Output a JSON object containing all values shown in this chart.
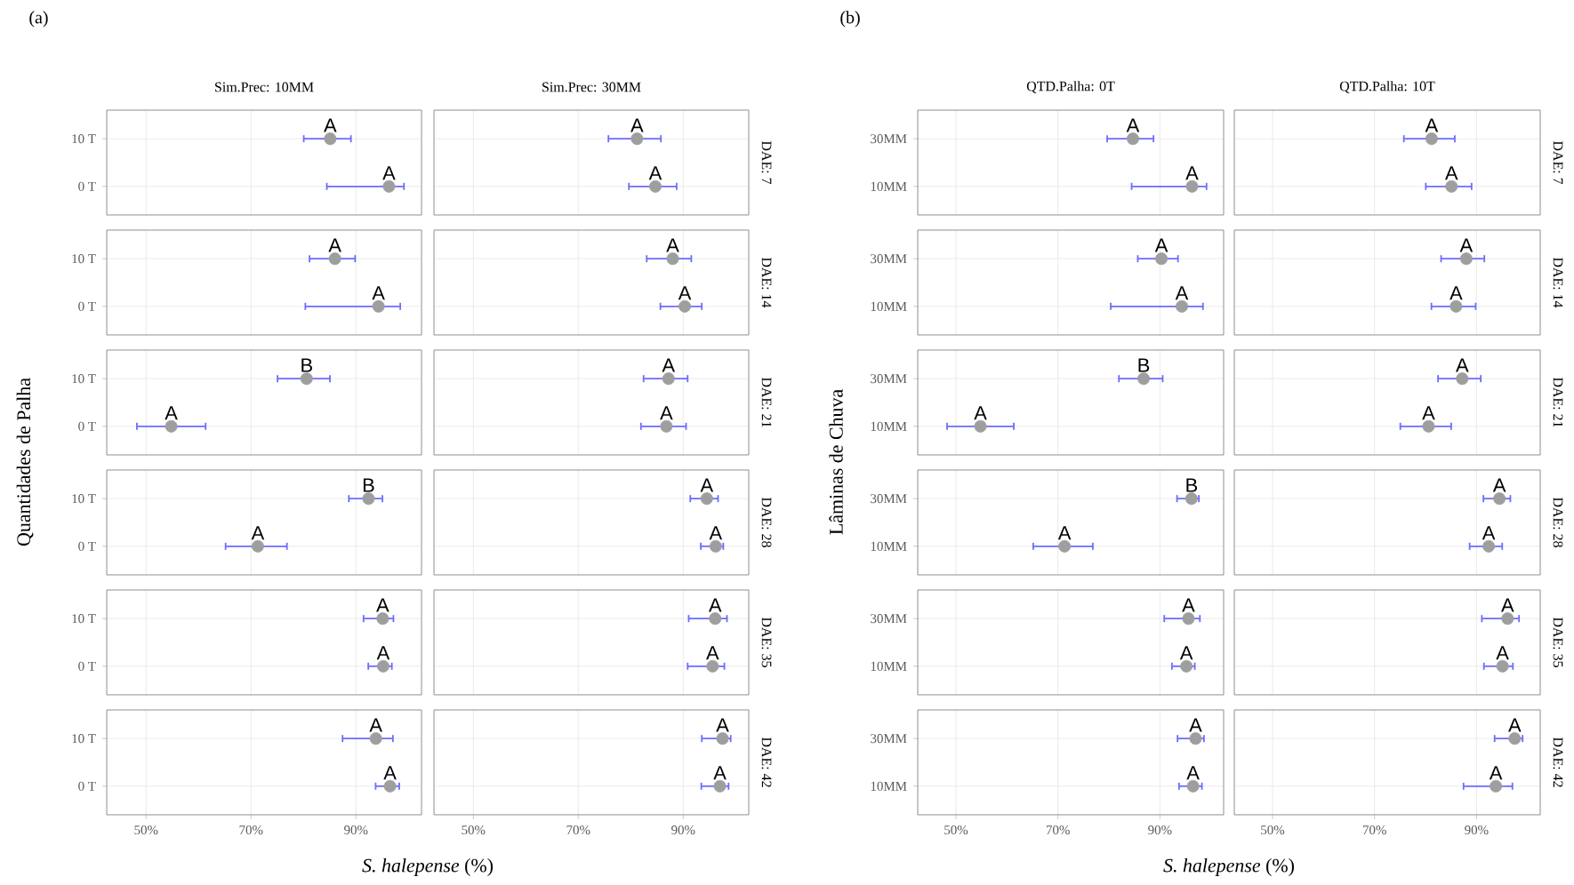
{
  "chart_data": [
    {
      "type": "scatter",
      "orientation": "horizontal",
      "title": "Sim.Prec: 10MM",
      "annotations": [
        "(a)",
        {
          "text": "A",
          "x": 85.1,
          "y": "10 T"
        },
        {
          "text": "A",
          "x": 96.3,
          "y": "0 T"
        }
      ],
      "categories": [
        "10 T",
        "0 T"
      ],
      "values": [
        85.1,
        96.3
      ],
      "errors": [
        [
          79.9,
          89.2
        ],
        [
          84.3,
          99.3
        ]
      ],
      "color": "#9e9e9e",
      "marker": "circle",
      "grid": true,
      "tick_labels": "y",
      "xlim": [
        42.5,
        102.5
      ],
      "xticks": [
        50,
        70,
        90
      ]
    },
    {
      "type": "scatter",
      "orientation": "horizontal",
      "title": "Sim.Prec: 30MM",
      "y2label": "DAE: 7",
      "annotations": [
        {
          "text": "A",
          "x": 81.2,
          "y": "10 T"
        },
        {
          "text": "A",
          "x": 84.7,
          "y": "0 T"
        }
      ],
      "categories": [
        "10 T",
        "0 T"
      ],
      "values": [
        81.2,
        84.7
      ],
      "errors": [
        [
          75.6,
          85.9
        ],
        [
          79.5,
          88.9
        ]
      ],
      "color": "#9e9e9e",
      "marker": "circle",
      "grid": true,
      "tick_labels": false,
      "xlim": [
        42.5,
        102.5
      ],
      "xticks": [
        50,
        70,
        90
      ]
    },
    {
      "type": "scatter",
      "orientation": "horizontal",
      "annotations": [
        {
          "text": "A",
          "x": 86.0,
          "y": "10 T"
        },
        {
          "text": "A",
          "x": 94.3,
          "y": "0 T"
        }
      ],
      "categories": [
        "10 T",
        "0 T"
      ],
      "values": [
        86.0,
        94.3
      ],
      "errors": [
        [
          81.0,
          90.0
        ],
        [
          80.2,
          98.6
        ]
      ],
      "color": "#9e9e9e",
      "marker": "circle",
      "grid": true,
      "tick_labels": "y",
      "xlim": [
        42.5,
        102.5
      ],
      "xticks": [
        50,
        70,
        90
      ]
    },
    {
      "type": "scatter",
      "orientation": "horizontal",
      "y2label": "DAE: 14",
      "annotations": [
        {
          "text": "A",
          "x": 88.0,
          "y": "10 T"
        },
        {
          "text": "A",
          "x": 90.3,
          "y": "0 T"
        }
      ],
      "categories": [
        "10 T",
        "0 T"
      ],
      "values": [
        88.0,
        90.3
      ],
      "errors": [
        [
          82.9,
          91.7
        ],
        [
          85.5,
          93.7
        ]
      ],
      "color": "#9e9e9e",
      "marker": "circle",
      "grid": true,
      "tick_labels": false,
      "xlim": [
        42.5,
        102.5
      ],
      "xticks": [
        50,
        70,
        90
      ]
    },
    {
      "type": "scatter",
      "orientation": "horizontal",
      "annotations": [
        {
          "text": "B",
          "x": 80.6,
          "y": "10 T"
        },
        {
          "text": "A",
          "x": 54.8,
          "y": "0 T"
        }
      ],
      "categories": [
        "10 T",
        "0 T"
      ],
      "values": [
        80.6,
        54.8
      ],
      "errors": [
        [
          74.9,
          85.2
        ],
        [
          48.1,
          61.5
        ]
      ],
      "color": "#9e9e9e",
      "marker": "circle",
      "grid": true,
      "tick_labels": "y",
      "xlim": [
        42.5,
        102.5
      ],
      "xticks": [
        50,
        70,
        90
      ]
    },
    {
      "type": "scatter",
      "orientation": "horizontal",
      "y2label": "DAE: 21",
      "annotations": [
        {
          "text": "A",
          "x": 87.2,
          "y": "10 T"
        },
        {
          "text": "A",
          "x": 86.8,
          "y": "0 T"
        }
      ],
      "categories": [
        "10 T",
        "0 T"
      ],
      "values": [
        87.2,
        86.8
      ],
      "errors": [
        [
          82.3,
          91.0
        ],
        [
          81.8,
          90.7
        ]
      ],
      "color": "#9e9e9e",
      "marker": "circle",
      "grid": true,
      "tick_labels": false,
      "xlim": [
        42.5,
        102.5
      ],
      "xticks": [
        50,
        70,
        90
      ]
    },
    {
      "type": "scatter",
      "orientation": "horizontal",
      "ylabel": "Quantidades de Palha",
      "annotations": [
        {
          "text": "B",
          "x": 92.4,
          "y": "10 T"
        },
        {
          "text": "A",
          "x": 71.3,
          "y": "0 T"
        }
      ],
      "categories": [
        "10 T",
        "0 T"
      ],
      "values": [
        92.4,
        71.3
      ],
      "errors": [
        [
          88.5,
          95.2
        ],
        [
          65.0,
          77.0
        ]
      ],
      "color": "#9e9e9e",
      "marker": "circle",
      "grid": true,
      "tick_labels": "y",
      "xlim": [
        42.5,
        102.5
      ],
      "xticks": [
        50,
        70,
        90
      ]
    },
    {
      "type": "scatter",
      "orientation": "horizontal",
      "y2label": "DAE: 28",
      "annotations": [
        {
          "text": "A",
          "x": 94.5,
          "y": "10 T"
        },
        {
          "text": "A",
          "x": 96.2,
          "y": "0 T"
        }
      ],
      "categories": [
        "10 T",
        "0 T"
      ],
      "values": [
        94.5,
        96.2
      ],
      "errors": [
        [
          91.2,
          96.8
        ],
        [
          93.2,
          97.8
        ]
      ],
      "color": "#9e9e9e",
      "marker": "circle",
      "grid": true,
      "tick_labels": false,
      "xlim": [
        42.5,
        102.5
      ],
      "xticks": [
        50,
        70,
        90
      ]
    },
    {
      "type": "scatter",
      "orientation": "horizontal",
      "annotations": [
        {
          "text": "A",
          "x": 95.1,
          "y": "10 T"
        },
        {
          "text": "A",
          "x": 95.2,
          "y": "0 T"
        }
      ],
      "categories": [
        "10 T",
        "0 T"
      ],
      "values": [
        95.1,
        95.2
      ],
      "errors": [
        [
          91.3,
          97.3
        ],
        [
          92.2,
          97.0
        ]
      ],
      "color": "#9e9e9e",
      "marker": "circle",
      "grid": true,
      "tick_labels": "y",
      "xlim": [
        42.5,
        102.5
      ],
      "xticks": [
        50,
        70,
        90
      ]
    },
    {
      "type": "scatter",
      "orientation": "horizontal",
      "y2label": "DAE: 35",
      "annotations": [
        {
          "text": "A",
          "x": 96.1,
          "y": "10 T"
        },
        {
          "text": "A",
          "x": 95.6,
          "y": "0 T"
        }
      ],
      "categories": [
        "10 T",
        "0 T"
      ],
      "values": [
        96.1,
        95.6
      ],
      "errors": [
        [
          90.9,
          98.5
        ],
        [
          90.7,
          98.0
        ]
      ],
      "color": "#9e9e9e",
      "marker": "circle",
      "grid": true,
      "tick_labels": false,
      "xlim": [
        42.5,
        102.5
      ],
      "xticks": [
        50,
        70,
        90
      ]
    },
    {
      "type": "scatter",
      "orientation": "horizontal",
      "xlabel": "*S. halepense* (%)",
      "annotations": [
        {
          "text": "A",
          "x": 93.8,
          "y": "10 T"
        },
        {
          "text": "A",
          "x": 96.5,
          "y": "0 T"
        }
      ],
      "categories": [
        "10 T",
        "0 T"
      ],
      "values": [
        93.8,
        96.5
      ],
      "errors": [
        [
          87.3,
          97.2
        ],
        [
          93.6,
          98.4
        ]
      ],
      "color": "#9e9e9e",
      "marker": "circle",
      "grid": true,
      "xlim": [
        42.5,
        102.5
      ],
      "xticks": [
        {
          "value": 50,
          "label": "50%"
        },
        {
          "value": 70,
          "label": "70%"
        },
        {
          "value": 90,
          "label": "90%"
        }
      ]
    },
    {
      "type": "scatter",
      "orientation": "horizontal",
      "y2label": "DAE: 42",
      "annotations": [
        {
          "text": "A",
          "x": 97.5,
          "y": "10 T"
        },
        {
          "text": "A",
          "x": 97.0,
          "y": "0 T"
        }
      ],
      "categories": [
        "10 T",
        "0 T"
      ],
      "values": [
        97.5,
        97.0
      ],
      "errors": [
        [
          93.4,
          99.2
        ],
        [
          93.3,
          98.8
        ]
      ],
      "color": "#9e9e9e",
      "marker": "circle",
      "grid": true,
      "tick_labels": "x",
      "xlim": [
        42.5,
        102.5
      ],
      "xticks": [
        {
          "value": 50,
          "label": "50%"
        },
        {
          "value": 70,
          "label": "70%"
        },
        {
          "value": 90,
          "label": "90%"
        }
      ]
    },
    {
      "type": "scatter",
      "orientation": "horizontal",
      "title": "QTD.Palha: 0T",
      "annotations": [
        "(b)",
        {
          "text": "A",
          "x": 84.7,
          "y": "30MM"
        },
        {
          "text": "A",
          "x": 96.3,
          "y": "10MM"
        }
      ],
      "categories": [
        "30MM",
        "10MM"
      ],
      "values": [
        84.7,
        96.3
      ],
      "errors": [
        [
          79.5,
          88.9
        ],
        [
          84.3,
          99.3
        ]
      ],
      "color": "#9e9e9e",
      "marker": "circle",
      "grid": true,
      "tick_labels": "y",
      "xlim": [
        42.5,
        102.5
      ],
      "xticks": [
        50,
        70,
        90
      ]
    },
    {
      "type": "scatter",
      "orientation": "horizontal",
      "title": "QTD.Palha: 10T",
      "y2label": "DAE: 7",
      "annotations": [
        {
          "text": "A",
          "x": 81.2,
          "y": "30MM"
        },
        {
          "text": "A",
          "x": 85.1,
          "y": "10MM"
        }
      ],
      "categories": [
        "30MM",
        "10MM"
      ],
      "values": [
        81.2,
        85.1
      ],
      "errors": [
        [
          75.6,
          85.9
        ],
        [
          79.9,
          89.2
        ]
      ],
      "color": "#9e9e9e",
      "marker": "circle",
      "grid": true,
      "tick_labels": false,
      "xlim": [
        42.5,
        102.5
      ],
      "xticks": [
        50,
        70,
        90
      ]
    },
    {
      "type": "scatter",
      "orientation": "horizontal",
      "annotations": [
        {
          "text": "A",
          "x": 90.3,
          "y": "30MM"
        },
        {
          "text": "A",
          "x": 94.3,
          "y": "10MM"
        }
      ],
      "categories": [
        "30MM",
        "10MM"
      ],
      "values": [
        90.3,
        94.3
      ],
      "errors": [
        [
          85.5,
          93.7
        ],
        [
          80.2,
          98.6
        ]
      ],
      "color": "#9e9e9e",
      "marker": "circle",
      "grid": true,
      "tick_labels": "y",
      "xlim": [
        42.5,
        102.5
      ],
      "xticks": [
        50,
        70,
        90
      ]
    },
    {
      "type": "scatter",
      "orientation": "horizontal",
      "y2label": "DAE: 14",
      "annotations": [
        {
          "text": "A",
          "x": 88.0,
          "y": "30MM"
        },
        {
          "text": "A",
          "x": 86.0,
          "y": "10MM"
        }
      ],
      "categories": [
        "30MM",
        "10MM"
      ],
      "values": [
        88.0,
        86.0
      ],
      "errors": [
        [
          82.9,
          91.7
        ],
        [
          81.0,
          90.0
        ]
      ],
      "color": "#9e9e9e",
      "marker": "circle",
      "grid": true,
      "tick_labels": false,
      "xlim": [
        42.5,
        102.5
      ],
      "xticks": [
        50,
        70,
        90
      ]
    },
    {
      "type": "scatter",
      "orientation": "horizontal",
      "annotations": [
        {
          "text": "B",
          "x": 86.8,
          "y": "30MM"
        },
        {
          "text": "A",
          "x": 54.8,
          "y": "10MM"
        }
      ],
      "categories": [
        "30MM",
        "10MM"
      ],
      "values": [
        86.8,
        54.8
      ],
      "errors": [
        [
          81.8,
          90.7
        ],
        [
          48.1,
          61.5
        ]
      ],
      "color": "#9e9e9e",
      "marker": "circle",
      "grid": true,
      "tick_labels": "y",
      "xlim": [
        42.5,
        102.5
      ],
      "xticks": [
        50,
        70,
        90
      ]
    },
    {
      "type": "scatter",
      "orientation": "horizontal",
      "y2label": "DAE: 21",
      "annotations": [
        {
          "text": "A",
          "x": 87.2,
          "y": "30MM"
        },
        {
          "text": "A",
          "x": 80.6,
          "y": "10MM"
        }
      ],
      "categories": [
        "30MM",
        "10MM"
      ],
      "values": [
        87.2,
        80.6
      ],
      "errors": [
        [
          82.3,
          91.0
        ],
        [
          74.9,
          85.2
        ]
      ],
      "color": "#9e9e9e",
      "marker": "circle",
      "grid": true,
      "tick_labels": false,
      "xlim": [
        42.5,
        102.5
      ],
      "xticks": [
        50,
        70,
        90
      ]
    },
    {
      "type": "scatter",
      "orientation": "horizontal",
      "ylabel": "Lâminas de Chuva",
      "annotations": [
        {
          "text": "B",
          "x": 96.2,
          "y": "30MM"
        },
        {
          "text": "A",
          "x": 71.3,
          "y": "10MM"
        }
      ],
      "categories": [
        "30MM",
        "10MM"
      ],
      "values": [
        96.2,
        71.3
      ],
      "errors": [
        [
          93.2,
          97.8
        ],
        [
          65.0,
          77.0
        ]
      ],
      "color": "#9e9e9e",
      "marker": "circle",
      "grid": true,
      "tick_labels": "y",
      "xlim": [
        42.5,
        102.5
      ],
      "xticks": [
        50,
        70,
        90
      ]
    },
    {
      "type": "scatter",
      "orientation": "horizontal",
      "y2label": "DAE: 28",
      "annotations": [
        {
          "text": "A",
          "x": 94.5,
          "y": "30MM"
        },
        {
          "text": "A",
          "x": 92.4,
          "y": "10MM"
        }
      ],
      "categories": [
        "30MM",
        "10MM"
      ],
      "values": [
        94.5,
        92.4
      ],
      "errors": [
        [
          91.2,
          96.8
        ],
        [
          88.5,
          95.2
        ]
      ],
      "color": "#9e9e9e",
      "marker": "circle",
      "grid": true,
      "tick_labels": false,
      "xlim": [
        42.5,
        102.5
      ],
      "xticks": [
        50,
        70,
        90
      ]
    },
    {
      "type": "scatter",
      "orientation": "horizontal",
      "annotations": [
        {
          "text": "A",
          "x": 95.6,
          "y": "30MM"
        },
        {
          "text": "A",
          "x": 95.2,
          "y": "10MM"
        }
      ],
      "categories": [
        "30MM",
        "10MM"
      ],
      "values": [
        95.6,
        95.2
      ],
      "errors": [
        [
          90.7,
          98.0
        ],
        [
          92.2,
          97.0
        ]
      ],
      "color": "#9e9e9e",
      "marker": "circle",
      "grid": true,
      "tick_labels": "y",
      "xlim": [
        42.5,
        102.5
      ],
      "xticks": [
        50,
        70,
        90
      ]
    },
    {
      "type": "scatter",
      "orientation": "horizontal",
      "y2label": "DAE: 35",
      "annotations": [
        {
          "text": "A",
          "x": 96.1,
          "y": "30MM"
        },
        {
          "text": "A",
          "x": 95.1,
          "y": "10MM"
        }
      ],
      "categories": [
        "30MM",
        "10MM"
      ],
      "values": [
        96.1,
        95.1
      ],
      "errors": [
        [
          90.9,
          98.5
        ],
        [
          91.3,
          97.3
        ]
      ],
      "color": "#9e9e9e",
      "marker": "circle",
      "grid": true,
      "tick_labels": false,
      "xlim": [
        42.5,
        102.5
      ],
      "xticks": [
        50,
        70,
        90
      ]
    },
    {
      "type": "scatter",
      "orientation": "horizontal",
      "xlabel": "*S. halepense* (%)",
      "annotations": [
        {
          "text": "A",
          "x": 97.0,
          "y": "30MM"
        },
        {
          "text": "A",
          "x": 96.5,
          "y": "10MM"
        }
      ],
      "categories": [
        "30MM",
        "10MM"
      ],
      "values": [
        97.0,
        96.5
      ],
      "errors": [
        [
          93.3,
          98.8
        ],
        [
          93.6,
          98.4
        ]
      ],
      "color": "#9e9e9e",
      "marker": "circle",
      "grid": true,
      "xlim": [
        42.5,
        102.5
      ],
      "xticks": [
        {
          "value": 50,
          "label": "50%"
        },
        {
          "value": 70,
          "label": "70%"
        },
        {
          "value": 90,
          "label": "90%"
        }
      ]
    },
    {
      "type": "scatter",
      "orientation": "horizontal",
      "y2label": "DAE: 42",
      "annotations": [
        {
          "text": "A",
          "x": 97.5,
          "y": "30MM"
        },
        {
          "text": "A",
          "x": 93.8,
          "y": "10MM"
        }
      ],
      "categories": [
        "30MM",
        "10MM"
      ],
      "values": [
        97.5,
        93.8
      ],
      "errors": [
        [
          93.4,
          99.2
        ],
        [
          87.3,
          97.2
        ]
      ],
      "color": "#9e9e9e",
      "marker": "circle",
      "grid": true,
      "tick_labels": "x",
      "xlim": [
        42.5,
        102.5
      ],
      "xticks": [
        {
          "value": 50,
          "label": "50%"
        },
        {
          "value": 70,
          "label": "70%"
        },
        {
          "value": 90,
          "label": "90%"
        }
      ]
    }
  ]
}
